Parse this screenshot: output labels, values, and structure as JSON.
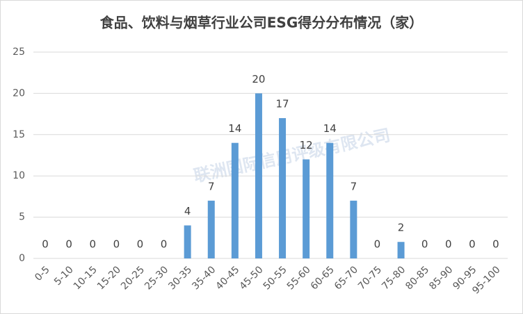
{
  "chart_data": {
    "type": "bar",
    "title": "食品、饮料与烟草行业公司ESG得分分布情况（家）",
    "watermark": "联洲国际信用评级有限公司",
    "categories": [
      "0-5",
      "5-10",
      "10-15",
      "15-20",
      "20-25",
      "25-30",
      "30-35",
      "35-40",
      "40-45",
      "45-50",
      "50-55",
      "55-60",
      "60-65",
      "65-70",
      "70-75",
      "75-80",
      "80-85",
      "85-90",
      "90-95",
      "95-100"
    ],
    "values": [
      0,
      0,
      0,
      0,
      0,
      0,
      4,
      7,
      14,
      20,
      17,
      12,
      14,
      7,
      0,
      2,
      0,
      0,
      0,
      0
    ],
    "color": "#5b9bd5",
    "ylim": [
      0,
      25
    ],
    "yticks": [
      0,
      5,
      10,
      15,
      20,
      25
    ],
    "grid": true
  }
}
